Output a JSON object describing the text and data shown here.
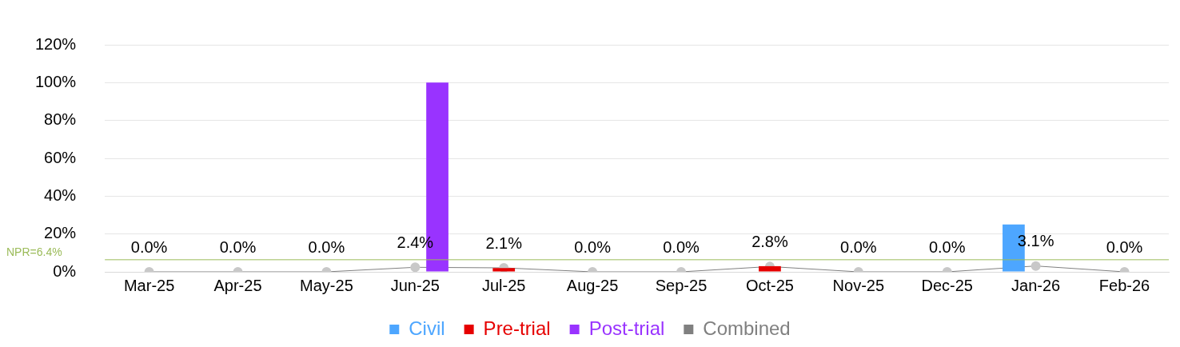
{
  "chart_data": {
    "type": "bar",
    "categories": [
      "Mar-25",
      "Apr-25",
      "May-25",
      "Jun-25",
      "Jul-25",
      "Aug-25",
      "Sep-25",
      "Oct-25",
      "Nov-25",
      "Dec-25",
      "Jan-26",
      "Feb-26"
    ],
    "series": [
      {
        "name": "Civil",
        "color": "#4da6ff",
        "values": [
          0,
          0,
          0,
          0,
          0,
          0,
          0,
          0,
          0,
          0,
          25,
          0
        ]
      },
      {
        "name": "Pre-trial",
        "color": "#e60000",
        "values": [
          0,
          0,
          0,
          0,
          2,
          0,
          0,
          3,
          0,
          0,
          0,
          0
        ]
      },
      {
        "name": "Post-trial",
        "color": "#9933ff",
        "values": [
          0,
          0,
          0,
          100,
          0,
          0,
          0,
          0,
          0,
          0,
          0,
          0
        ]
      },
      {
        "name": "Combined",
        "type": "line",
        "color": "#808080",
        "marker": "circle",
        "values": [
          0,
          0,
          0,
          2.4,
          2.1,
          0,
          0,
          2.8,
          0,
          0,
          3.1,
          0
        ],
        "value_labels": [
          "0.0%",
          "0.0%",
          "0.0%",
          "2.4%",
          "2.1%",
          "0.0%",
          "0.0%",
          "2.8%",
          "0.0%",
          "0.0%",
          "3.1%",
          "0.0%"
        ]
      }
    ],
    "ylim": [
      0,
      120
    ],
    "yticks": [
      {
        "value": 0,
        "label": "0%"
      },
      {
        "value": 20,
        "label": "20%"
      },
      {
        "value": 40,
        "label": "40%"
      },
      {
        "value": 60,
        "label": "60%"
      },
      {
        "value": 80,
        "label": "80%"
      },
      {
        "value": 100,
        "label": "100%"
      },
      {
        "value": 120,
        "label": "120%"
      }
    ],
    "ref_lines": [
      {
        "axis": "y",
        "value": 6.4,
        "label": "NPR=6.4%",
        "color": "#9bbb59"
      }
    ],
    "grid": "y",
    "legend": "bottom"
  }
}
